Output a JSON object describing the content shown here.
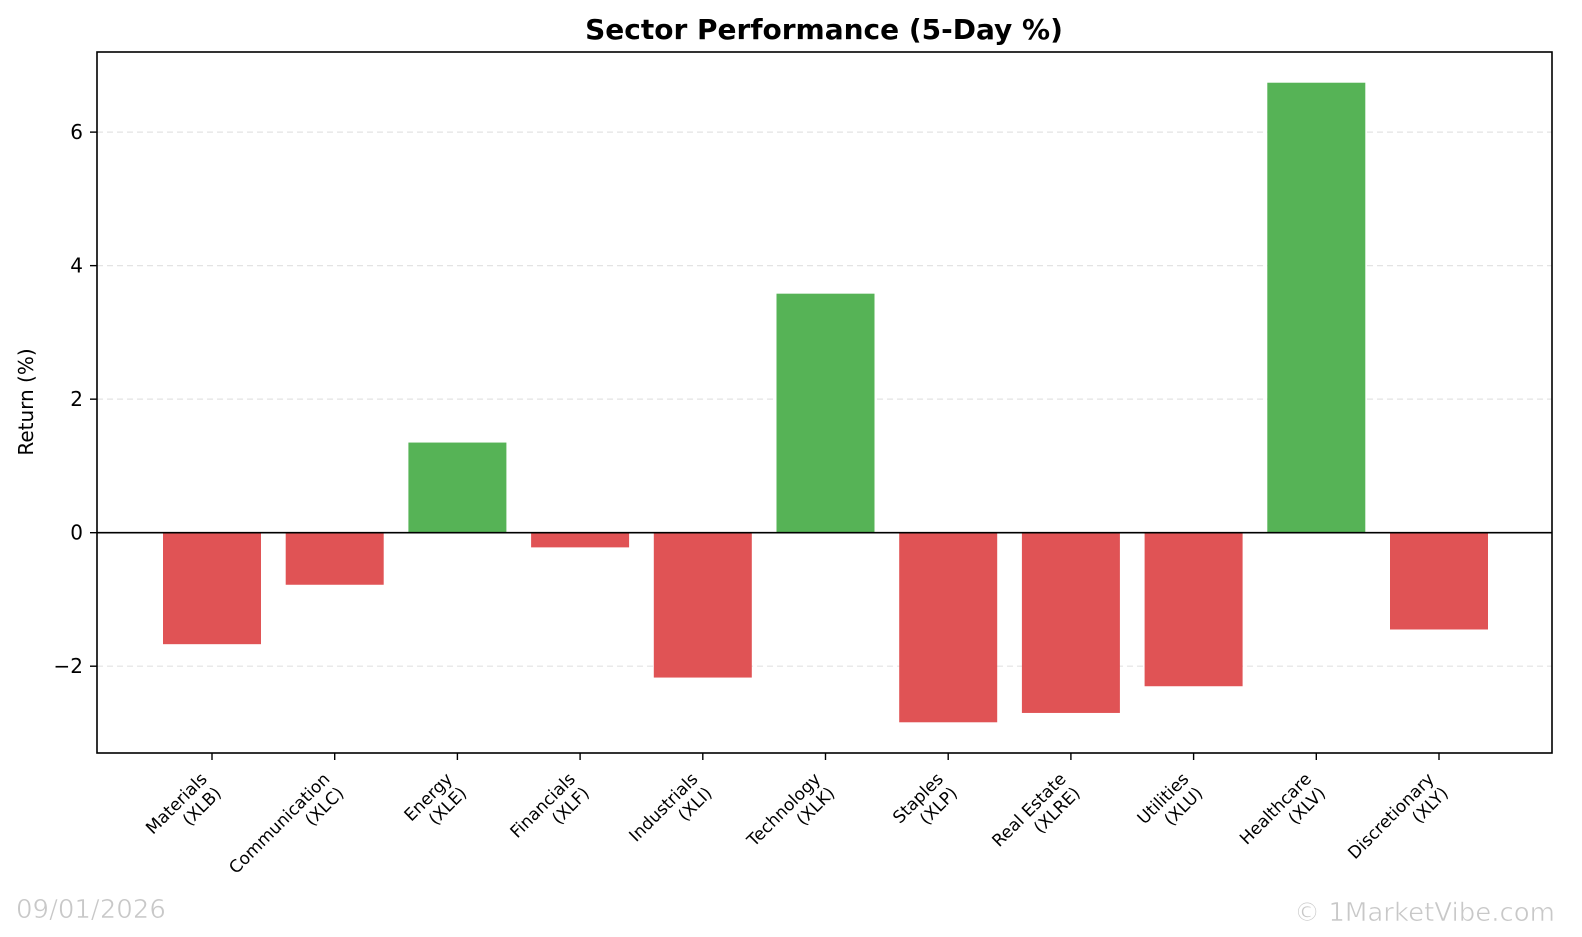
{
  "chart_data": {
    "type": "bar",
    "title": "Sector Performance (5-Day %)",
    "xlabel": "",
    "ylabel": "Return (%)",
    "categories": [
      [
        "Materials",
        "(XLB)"
      ],
      [
        "Communication",
        "(XLC)"
      ],
      [
        "Energy",
        "(XLE)"
      ],
      [
        "Financials",
        "(XLF)"
      ],
      [
        "Industrials",
        "(XLI)"
      ],
      [
        "Technology",
        "(XLK)"
      ],
      [
        "Staples",
        "(XLP)"
      ],
      [
        "Real Estate",
        "(XLRE)"
      ],
      [
        "Utilities",
        "(XLU)"
      ],
      [
        "Healthcare",
        "(XLV)"
      ],
      [
        "Discretionary",
        "(XLY)"
      ]
    ],
    "values": [
      -1.67,
      -0.78,
      1.35,
      -0.22,
      -2.17,
      3.58,
      -2.84,
      -2.7,
      -2.3,
      6.74,
      -1.45
    ],
    "ylim": [
      -3.3,
      7.2
    ],
    "yticks": [
      -2,
      0,
      2,
      4,
      6
    ],
    "ytick_labels": [
      "−2",
      "0",
      "2",
      "4",
      "6"
    ],
    "grid": "y-dashed",
    "legend": "none",
    "colors": {
      "positive": "#56b356",
      "negative": "#e05355",
      "grid": "#e3e3e3",
      "zero_line": "#000000"
    }
  },
  "watermarks": {
    "date": "09/01/2026",
    "copyright": "© 1MarketVibe.com"
  }
}
